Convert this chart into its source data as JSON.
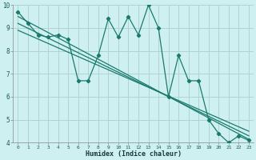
{
  "title": "",
  "xlabel": "Humidex (Indice chaleur)",
  "ylabel": "",
  "bg_color": "#cff0f0",
  "grid_color": "#b0d4d4",
  "line_color": "#1a7a6e",
  "xlim": [
    -0.5,
    23.5
  ],
  "ylim": [
    4,
    10
  ],
  "xticks": [
    0,
    1,
    2,
    3,
    4,
    5,
    6,
    7,
    8,
    9,
    10,
    11,
    12,
    13,
    14,
    15,
    16,
    17,
    18,
    19,
    20,
    21,
    22,
    23
  ],
  "yticks": [
    4,
    5,
    6,
    7,
    8,
    9,
    10
  ],
  "series1_x": [
    0,
    1,
    2,
    3,
    4,
    5,
    6,
    7,
    8,
    9,
    10,
    11,
    12,
    13,
    14,
    15,
    16,
    17,
    18,
    19,
    20,
    21,
    22,
    23
  ],
  "series1_y": [
    9.7,
    9.2,
    8.7,
    8.6,
    8.7,
    8.5,
    6.7,
    6.7,
    7.8,
    9.4,
    8.6,
    9.5,
    8.7,
    10.0,
    9.0,
    6.0,
    7.8,
    6.7,
    6.7,
    5.0,
    4.4,
    4.0,
    4.3,
    4.1
  ],
  "regression_lines": [
    {
      "x": [
        0,
        23
      ],
      "y": [
        9.5,
        4.15
      ]
    },
    {
      "x": [
        0,
        23
      ],
      "y": [
        9.2,
        4.3
      ]
    },
    {
      "x": [
        0,
        23
      ],
      "y": [
        8.9,
        4.5
      ]
    }
  ]
}
